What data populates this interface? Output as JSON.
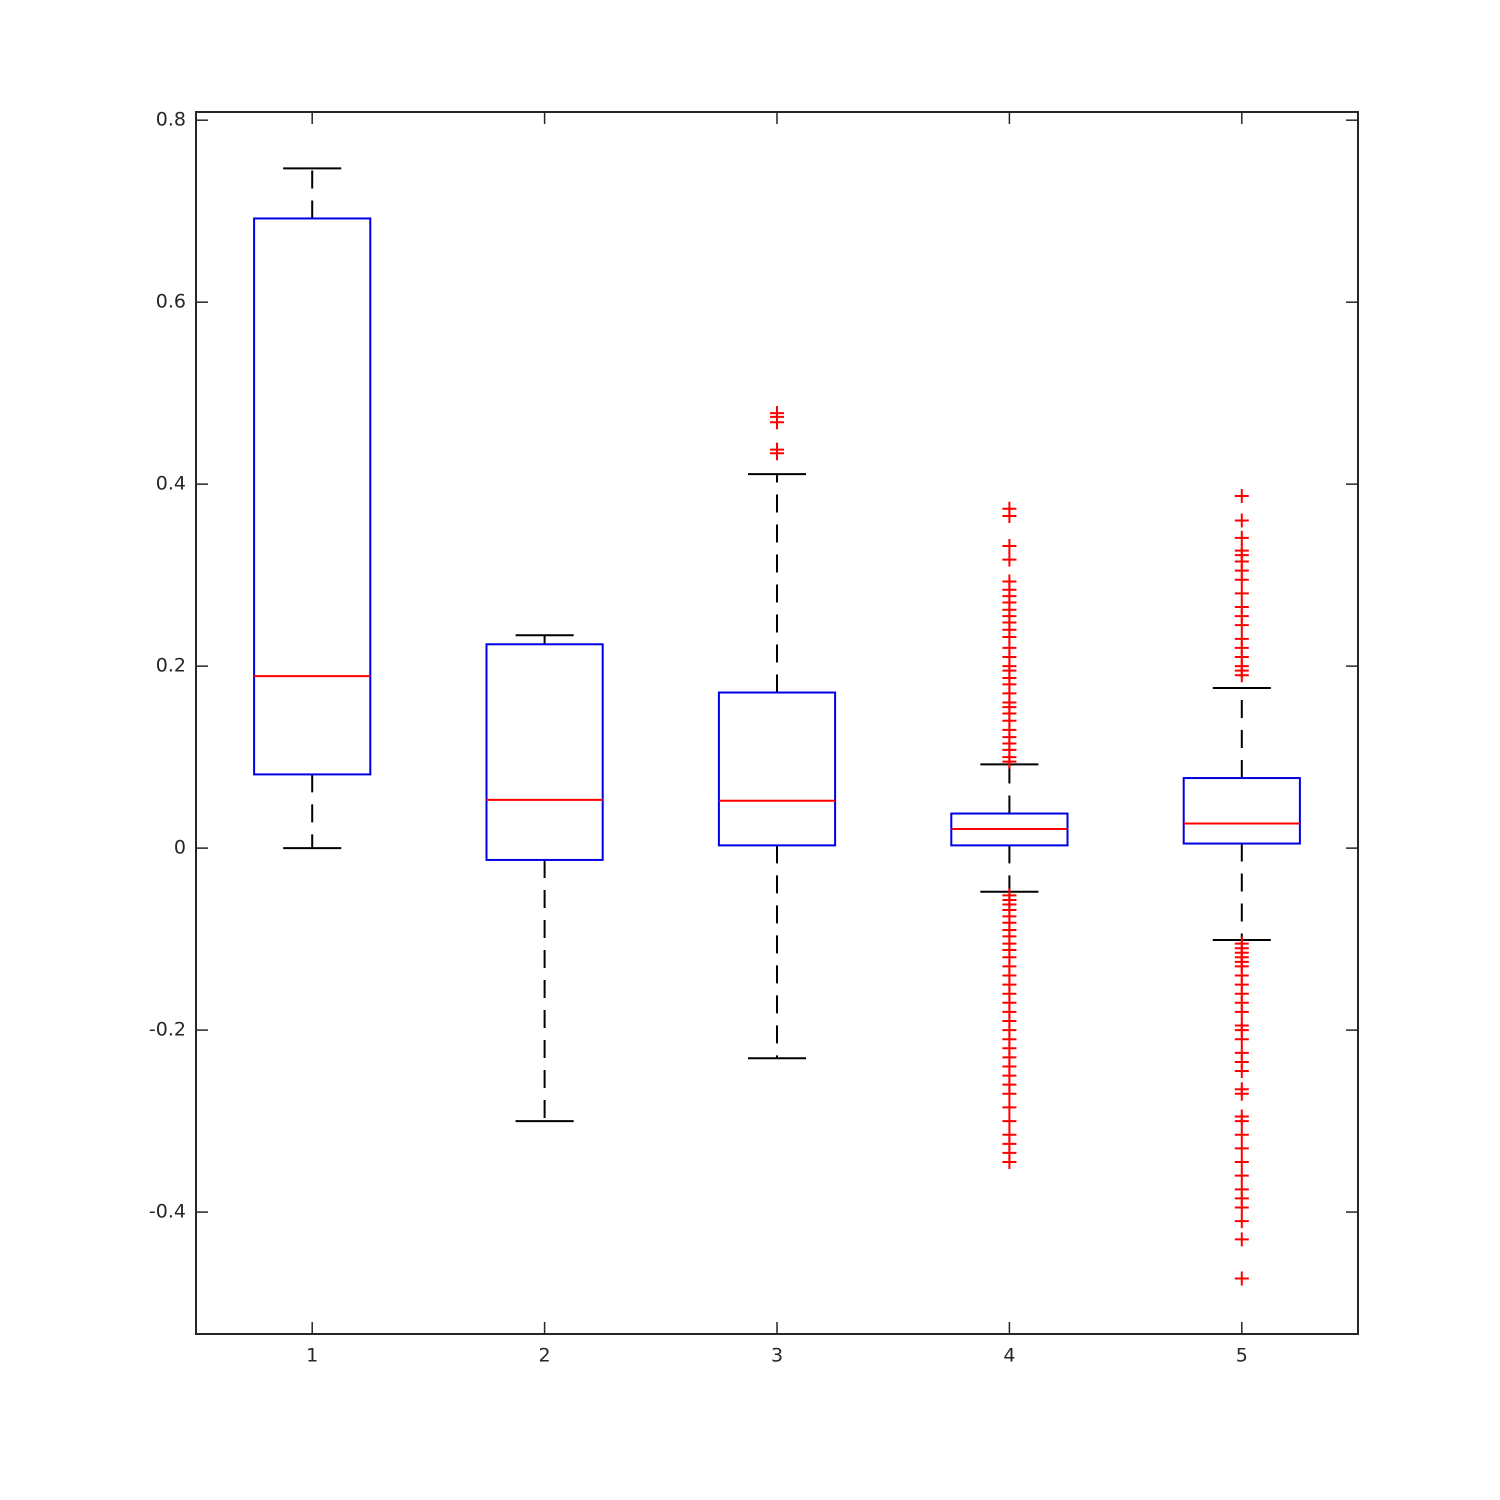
{
  "chart_data": {
    "type": "box",
    "xlim": [
      0.5,
      5.5
    ],
    "xticks": [
      1,
      2,
      3,
      4,
      5
    ],
    "ylim": [
      -0.534,
      0.809
    ],
    "yticks": [
      -0.4,
      -0.2,
      0,
      0.2,
      0.4,
      0.6,
      0.8
    ],
    "box_color": "#0000e6",
    "median_color": "#ff0000",
    "whisker_color": "#000000",
    "outlier_color": "#ff0000",
    "boxes": [
      {
        "x": 1,
        "whisker_low": 0.0,
        "q1": 0.081,
        "median": 0.189,
        "q3": 0.692,
        "whisker_high": 0.747,
        "outliers": []
      },
      {
        "x": 2,
        "whisker_low": -0.3,
        "q1": -0.013,
        "median": 0.053,
        "q3": 0.224,
        "whisker_high": 0.234,
        "outliers": []
      },
      {
        "x": 3,
        "whisker_low": -0.231,
        "q1": 0.003,
        "median": 0.052,
        "q3": 0.171,
        "whisker_high": 0.411,
        "outliers": [
          0.478,
          0.474,
          0.468,
          0.438,
          0.434
        ]
      },
      {
        "x": 4,
        "whisker_low": -0.048,
        "q1": 0.003,
        "median": 0.021,
        "q3": 0.038,
        "whisker_high": 0.092,
        "outliers": [
          0.373,
          0.365,
          0.332,
          0.317,
          0.293,
          0.284,
          0.277,
          0.27,
          0.262,
          0.255,
          0.248,
          0.24,
          0.232,
          0.22,
          0.21,
          0.2,
          0.195,
          0.187,
          0.18,
          0.17,
          0.16,
          0.155,
          0.148,
          0.14,
          0.13,
          0.122,
          0.115,
          0.108,
          0.1,
          0.095,
          -0.052,
          -0.057,
          -0.062,
          -0.068,
          -0.075,
          -0.082,
          -0.09,
          -0.097,
          -0.105,
          -0.112,
          -0.12,
          -0.13,
          -0.14,
          -0.15,
          -0.16,
          -0.17,
          -0.18,
          -0.19,
          -0.2,
          -0.21,
          -0.22,
          -0.23,
          -0.24,
          -0.25,
          -0.26,
          -0.27,
          -0.285,
          -0.3,
          -0.315,
          -0.325,
          -0.335,
          -0.345
        ]
      },
      {
        "x": 5,
        "whisker_low": -0.101,
        "q1": 0.005,
        "median": 0.027,
        "q3": 0.077,
        "whisker_high": 0.176,
        "outliers": [
          0.387,
          0.36,
          0.341,
          0.327,
          0.322,
          0.315,
          0.305,
          0.295,
          0.28,
          0.265,
          0.255,
          0.245,
          0.23,
          0.22,
          0.21,
          0.2,
          0.195,
          0.19,
          -0.105,
          -0.11,
          -0.115,
          -0.12,
          -0.125,
          -0.13,
          -0.14,
          -0.15,
          -0.16,
          -0.17,
          -0.18,
          -0.195,
          -0.2,
          -0.21,
          -0.225,
          -0.235,
          -0.245,
          -0.265,
          -0.27,
          -0.295,
          -0.3,
          -0.315,
          -0.33,
          -0.345,
          -0.36,
          -0.375,
          -0.385,
          -0.395,
          -0.41,
          -0.43,
          -0.473
        ]
      }
    ]
  }
}
